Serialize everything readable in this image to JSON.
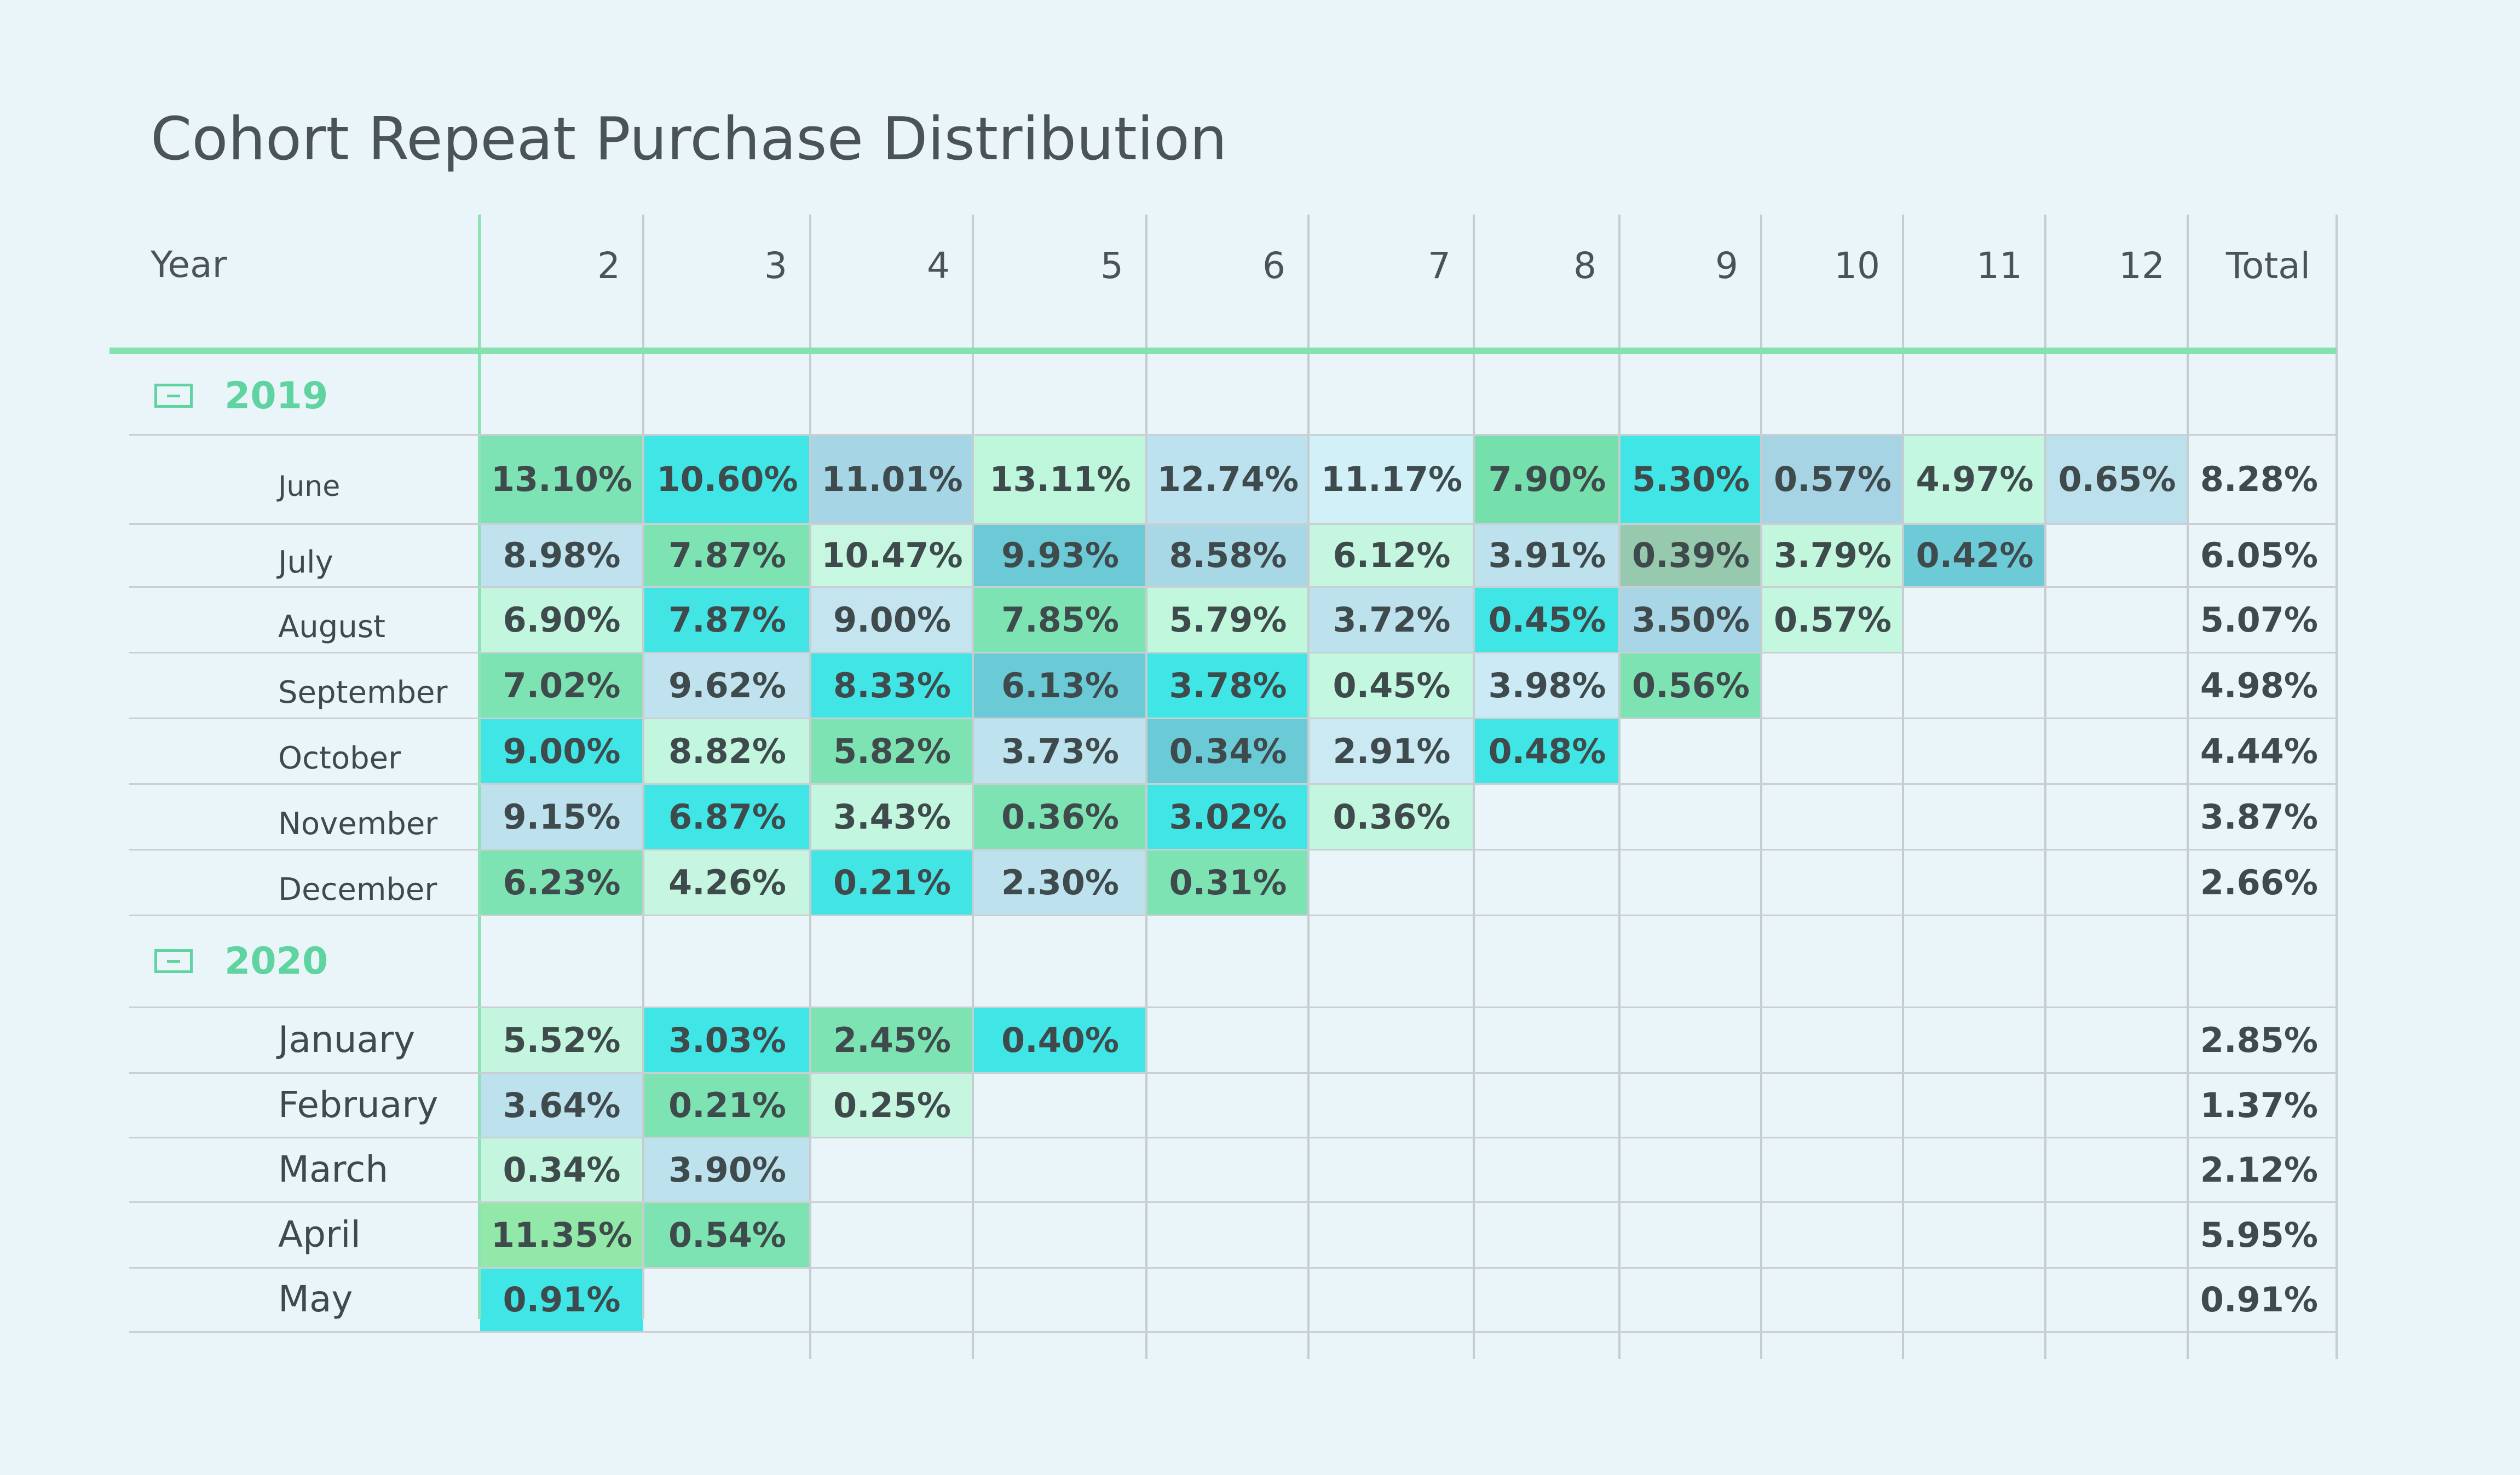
{
  "chart_data": {
    "type": "table",
    "title": "Cohort Repeat Purchase Distribution",
    "row_header": "Year",
    "columns": [
      "2",
      "3",
      "4",
      "5",
      "6",
      "7",
      "8",
      "9",
      "10",
      "11",
      "12"
    ],
    "total_header": "Total",
    "groups": [
      {
        "year": "2019",
        "rows": [
          {
            "label": "June",
            "values": [
              "13.10%",
              "10.60%",
              "11.01%",
              "13.11%",
              "12.74%",
              "11.17%",
              "7.90%",
              "5.30%",
              "0.57%",
              "4.97%",
              "0.65%"
            ],
            "total": "8.28%"
          },
          {
            "label": "July",
            "values": [
              "8.98%",
              "7.87%",
              "10.47%",
              "9.93%",
              "8.58%",
              "6.12%",
              "3.91%",
              "0.39%",
              "3.79%",
              "0.42%"
            ],
            "total": "6.05%"
          },
          {
            "label": "August",
            "values": [
              "6.90%",
              "7.87%",
              "9.00%",
              "7.85%",
              "5.79%",
              "3.72%",
              "0.45%",
              "3.50%",
              "0.57%"
            ],
            "total": "5.07%"
          },
          {
            "label": "September",
            "values": [
              "7.02%",
              "9.62%",
              "8.33%",
              "6.13%",
              "3.78%",
              "0.45%",
              "3.98%",
              "0.56%"
            ],
            "total": "4.98%"
          },
          {
            "label": "October",
            "values": [
              "9.00%",
              "8.82%",
              "5.82%",
              "3.73%",
              "0.34%",
              "2.91%",
              "0.48%"
            ],
            "total": "4.44%"
          },
          {
            "label": "November",
            "values": [
              "9.15%",
              "6.87%",
              "3.43%",
              "0.36%",
              "3.02%",
              "0.36%"
            ],
            "total": "3.87%"
          },
          {
            "label": "December",
            "values": [
              "6.23%",
              "4.26%",
              "0.21%",
              "2.30%",
              "0.31%"
            ],
            "total": "2.66%"
          }
        ]
      },
      {
        "year": "2020",
        "rows": [
          {
            "label": "January",
            "values": [
              "5.52%",
              "3.03%",
              "2.45%",
              "0.40%"
            ],
            "total": "2.85%"
          },
          {
            "label": "February",
            "values": [
              "3.64%",
              "0.21%",
              "0.25%"
            ],
            "total": "1.37%"
          },
          {
            "label": "March",
            "values": [
              "0.34%",
              "3.90%"
            ],
            "total": "2.12%"
          },
          {
            "label": "April",
            "values": [
              "11.35%",
              "0.54%"
            ],
            "total": "5.95%"
          },
          {
            "label": "May",
            "values": [
              "0.91%"
            ],
            "total": "0.91%"
          }
        ]
      }
    ],
    "cell_colors": [
      [
        "#7ee3b4",
        "#3fe6e5",
        "#a6d6e6",
        "#bff7dc",
        "#bbe2ee",
        "#d2f0f8",
        "#76e0ad",
        "#3fe6e5",
        "#a7d4e5",
        "#c4f7df",
        "#bde1ec"
      ],
      [
        "#bfe2ee",
        "#7de3b3",
        "#c7f7e1",
        "#6bcad6",
        "#a8d7e6",
        "#c5f7e0",
        "#bde2ee",
        "#96c9ae",
        "#c2f7de",
        "#6ccbd7"
      ],
      [
        "#c3f6de",
        "#43e5e4",
        "#c4e4ef",
        "#7ee3b3",
        "#c1f7dd",
        "#bde2ee",
        "#3fe6e5",
        "#a8d6e6",
        "#c4f7df"
      ],
      [
        "#7ee3b3",
        "#c0e2ee",
        "#41e5e5",
        "#6acad6",
        "#3fe6e5",
        "#c4f7df",
        "#cbeaf5",
        "#7ee3b3"
      ],
      [
        "#3fe6e5",
        "#c3f6de",
        "#7ee3b3",
        "#bee2ee",
        "#6acad6",
        "#cae9f3",
        "#3fe6e5"
      ],
      [
        "#bde1ed",
        "#3fe6e5",
        "#c3f6de",
        "#7ee3b3",
        "#3fe6e5",
        "#c3f6de"
      ],
      [
        "#7ee3b3",
        "#c6f6e0",
        "#43e5e4",
        "#bde2ee",
        "#7ee3b3"
      ],
      [
        "#c4f6df",
        "#3fe6e5",
        "#7ee3b3",
        "#3fe6e5"
      ],
      [
        "#bde1ed",
        "#7ee3b3",
        "#c6f6e0"
      ],
      [
        "#c4f6df",
        "#bde2ee"
      ],
      [
        "#92e8a8",
        "#7ee3b3"
      ],
      [
        "#3fe6e5"
      ]
    ]
  }
}
